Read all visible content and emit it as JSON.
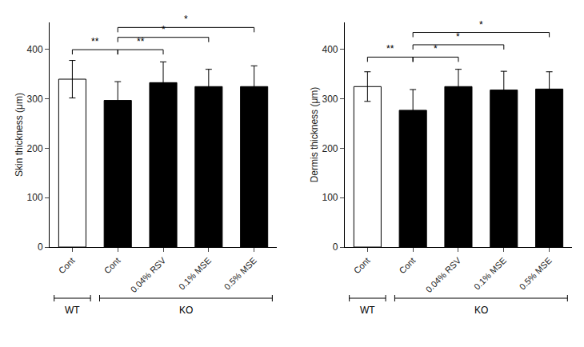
{
  "chart_data": [
    {
      "type": "bar",
      "ylabel": "Skin thickness (μm)",
      "categories": [
        "Cont",
        "Cont",
        "0.04% RSV",
        "0.1% MSE",
        "0.5% MSE"
      ],
      "values": [
        340,
        297,
        333,
        325,
        325
      ],
      "errors": [
        38,
        38,
        42,
        35,
        42
      ],
      "colors": [
        "white",
        "black",
        "black",
        "black",
        "black"
      ],
      "significance": [
        {
          "x1": 0,
          "x2": 1,
          "y": 390,
          "label": "**"
        },
        {
          "x1": 1,
          "x2": 2,
          "y": 390,
          "label": "**"
        },
        {
          "x1": 1,
          "x2": 3,
          "y": 415,
          "label": "*"
        },
        {
          "x1": 1,
          "x2": 4,
          "y": 435,
          "label": "*"
        }
      ],
      "groups": [
        {
          "label": "WT",
          "from": 0,
          "to": 0
        },
        {
          "label": "KO",
          "from": 1,
          "to": 4
        }
      ],
      "ylim": [
        0,
        455
      ],
      "yticks": [
        0,
        100,
        200,
        300,
        400
      ],
      "grid": false
    },
    {
      "type": "bar",
      "ylabel": "Dermis thickness (μm)",
      "categories": [
        "Cont",
        "Cont",
        "0.04% RSV",
        "0.1% MSE",
        "0.5% MSE"
      ],
      "values": [
        325,
        277,
        325,
        318,
        320
      ],
      "errors": [
        30,
        42,
        35,
        38,
        35
      ],
      "colors": [
        "white",
        "black",
        "black",
        "black",
        "black"
      ],
      "significance": [
        {
          "x1": 0,
          "x2": 1,
          "y": 375,
          "label": "**"
        },
        {
          "x1": 1,
          "x2": 2,
          "y": 375,
          "label": "*"
        },
        {
          "x1": 1,
          "x2": 3,
          "y": 400,
          "label": "*"
        },
        {
          "x1": 1,
          "x2": 4,
          "y": 425,
          "label": "*"
        }
      ],
      "groups": [
        {
          "label": "WT",
          "from": 0,
          "to": 0
        },
        {
          "label": "KO",
          "from": 1,
          "to": 4
        }
      ],
      "ylim": [
        0,
        455
      ],
      "yticks": [
        0,
        100,
        200,
        300,
        400
      ],
      "grid": false
    }
  ]
}
